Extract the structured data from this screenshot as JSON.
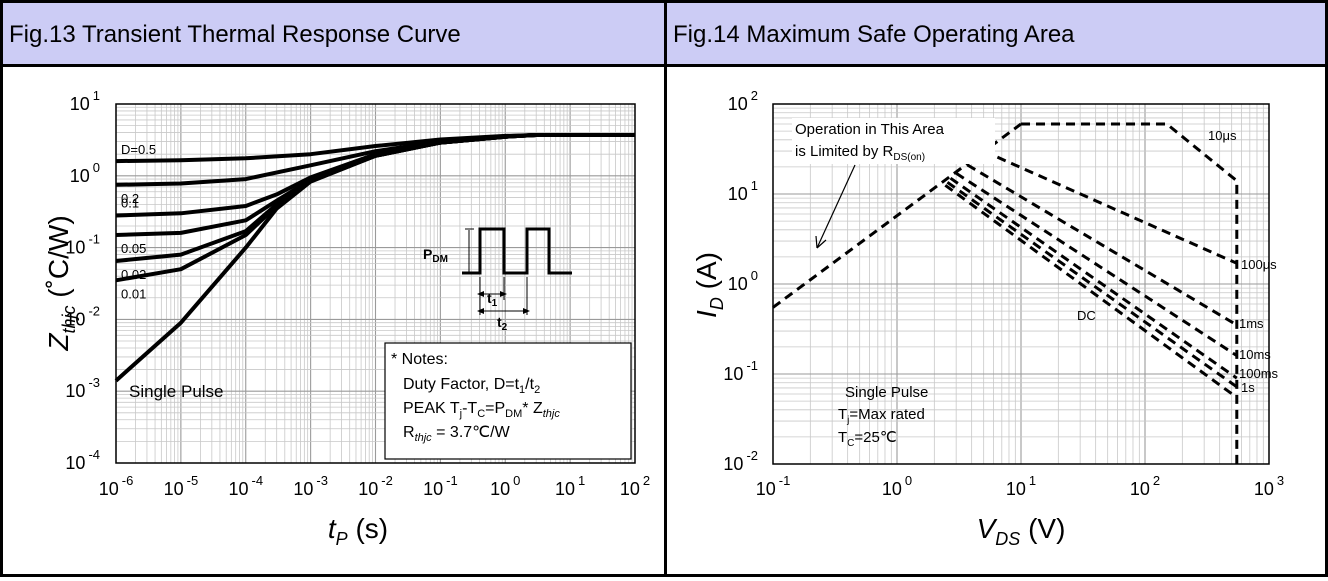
{
  "colors": {
    "header_bg": "#ccccf5",
    "grid": "#c8c8c8",
    "curve": "#000000"
  },
  "fig13": {
    "title": "Fig.13 Transient Thermal Response Curve",
    "pdm_label": "P",
    "pdm_sub": "DM",
    "t1_label": "t",
    "t1_sub": "1",
    "t2_label": "t",
    "t2_sub": "2",
    "notes": {
      "heading": "* Notes:",
      "line1_a": "Duty Factor,  D=t",
      "line1_b": "1",
      "line1_c": "/t",
      "line1_d": "2",
      "line2_a": "PEAK T",
      "line2_b": "j",
      "line2_c": "-T",
      "line2_d": "C",
      "line2_e": "=P",
      "line2_f": "DM",
      "line2_g": "* Z",
      "line2_h": "thjc",
      "line3_a": "R",
      "line3_b": "thjc",
      "line3_c": " = 3.7℃/W"
    }
  },
  "fig14": {
    "title": "Fig.14 Maximum Safe Operating Area",
    "annotation_line1": "Operation in This Area",
    "annotation_line2a": "is Limited by R",
    "annotation_line2b": "DS(on)",
    "conditions": {
      "line1": "Single Pulse",
      "line2a": "T",
      "line2b": "j",
      "line2c": "=Max rated",
      "line3a": "T",
      "line3b": "C",
      "line3c": "=25℃"
    }
  },
  "chart_data": [
    {
      "type": "line",
      "title": "Fig.13 Transient Thermal Response Curve",
      "xlabel": "t_P (s)",
      "ylabel": "Z_thjc (°C/W)",
      "xscale": "log",
      "yscale": "log",
      "xlim": [
        1e-06,
        100
      ],
      "ylim": [
        0.0001,
        10
      ],
      "x_ticks": [
        {
          "base": "10",
          "exp": "-6"
        },
        {
          "base": "10",
          "exp": "-5"
        },
        {
          "base": "10",
          "exp": "-4"
        },
        {
          "base": "10",
          "exp": "-3"
        },
        {
          "base": "10",
          "exp": "-2"
        },
        {
          "base": "10",
          "exp": "-1"
        },
        {
          "base": "10",
          "exp": "0"
        },
        {
          "base": "10",
          "exp": "1"
        },
        {
          "base": "10",
          "exp": "2"
        }
      ],
      "y_ticks": [
        {
          "base": "10",
          "exp": "1"
        },
        {
          "base": "10",
          "exp": "0"
        },
        {
          "base": "10",
          "exp": "-1"
        },
        {
          "base": "10",
          "exp": "-2"
        },
        {
          "base": "10",
          "exp": "-3"
        },
        {
          "base": "10",
          "exp": "-4"
        }
      ],
      "grid": true,
      "series": [
        {
          "name": "D=0.5",
          "x": [
            1e-06,
            1e-05,
            0.0001,
            0.001,
            0.01,
            0.1,
            1,
            3,
            100
          ],
          "y": [
            1.6,
            1.65,
            1.75,
            2.0,
            2.6,
            3.2,
            3.6,
            3.7,
            3.7
          ]
        },
        {
          "name": "0.2",
          "x": [
            1e-06,
            1e-05,
            0.0001,
            0.001,
            0.01,
            0.1,
            1,
            3,
            100
          ],
          "y": [
            0.75,
            0.78,
            0.9,
            1.4,
            2.2,
            3.0,
            3.55,
            3.7,
            3.7
          ]
        },
        {
          "name": "0.1",
          "x": [
            1e-06,
            1e-05,
            0.0001,
            0.0003,
            0.001,
            0.01,
            0.1,
            1,
            3,
            100
          ],
          "y": [
            0.28,
            0.3,
            0.38,
            0.55,
            0.95,
            2.0,
            2.9,
            3.5,
            3.7,
            3.7
          ]
        },
        {
          "name": "0.05",
          "x": [
            1e-06,
            1e-05,
            0.0001,
            0.0003,
            0.001,
            0.01,
            0.1,
            1,
            3,
            100
          ],
          "y": [
            0.15,
            0.16,
            0.24,
            0.45,
            0.88,
            1.95,
            2.9,
            3.5,
            3.7,
            3.7
          ]
        },
        {
          "name": "0.02",
          "x": [
            1e-06,
            1e-05,
            0.0001,
            0.0003,
            0.001,
            0.01,
            0.1,
            1,
            3,
            100
          ],
          "y": [
            0.065,
            0.08,
            0.17,
            0.4,
            0.85,
            1.9,
            2.9,
            3.5,
            3.7,
            3.7
          ]
        },
        {
          "name": "0.01",
          "x": [
            1e-06,
            1e-05,
            0.0001,
            0.0003,
            0.001,
            0.01,
            0.1,
            1,
            3,
            100
          ],
          "y": [
            0.035,
            0.05,
            0.15,
            0.38,
            0.84,
            1.9,
            2.9,
            3.5,
            3.7,
            3.7
          ]
        },
        {
          "name": "Single Pulse",
          "x": [
            1e-06,
            1e-05,
            0.0001,
            0.0003,
            0.001,
            0.01,
            0.1,
            1,
            3,
            100
          ],
          "y": [
            0.0014,
            0.009,
            0.1,
            0.35,
            0.83,
            1.9,
            2.9,
            3.5,
            3.7,
            3.7
          ]
        }
      ]
    },
    {
      "type": "line",
      "title": "Fig.14 Maximum Safe Operating Area",
      "xlabel": "V_DS (V)",
      "ylabel": "I_D (A)",
      "xscale": "log",
      "yscale": "log",
      "xlim": [
        0.1,
        1000
      ],
      "ylim": [
        0.01,
        100
      ],
      "x_ticks": [
        {
          "base": "10",
          "exp": "-1"
        },
        {
          "base": "10",
          "exp": "0"
        },
        {
          "base": "10",
          "exp": "1"
        },
        {
          "base": "10",
          "exp": "2"
        },
        {
          "base": "10",
          "exp": "3"
        }
      ],
      "y_ticks": [
        {
          "base": "10",
          "exp": "2"
        },
        {
          "base": "10",
          "exp": "1"
        },
        {
          "base": "10",
          "exp": "0"
        },
        {
          "base": "10",
          "exp": "-1"
        },
        {
          "base": "10",
          "exp": "-2"
        }
      ],
      "grid": true,
      "line_style": "dashed",
      "series": [
        {
          "name": "R_DS(on) limit",
          "x": [
            0.1,
            10
          ],
          "y": [
            0.55,
            60
          ]
        },
        {
          "name": "10μs",
          "x": [
            10,
            150,
            550,
            550
          ],
          "y": [
            60,
            60,
            14,
            0.01
          ]
        },
        {
          "name": "100μs",
          "x": [
            5,
            550
          ],
          "y": [
            30,
            1.7
          ]
        },
        {
          "name": "1ms",
          "x": [
            3.7,
            550
          ],
          "y": [
            21,
            0.35
          ]
        },
        {
          "name": "10ms",
          "x": [
            3.0,
            550
          ],
          "y": [
            17,
            0.16
          ]
        },
        {
          "name": "100ms",
          "x": [
            2.7,
            550
          ],
          "y": [
            15,
            0.09
          ]
        },
        {
          "name": "1s",
          "x": [
            2.55,
            550
          ],
          "y": [
            13.5,
            0.072
          ]
        },
        {
          "name": "DC",
          "x": [
            2.45,
            550
          ],
          "y": [
            12.5,
            0.055
          ]
        }
      ]
    }
  ]
}
